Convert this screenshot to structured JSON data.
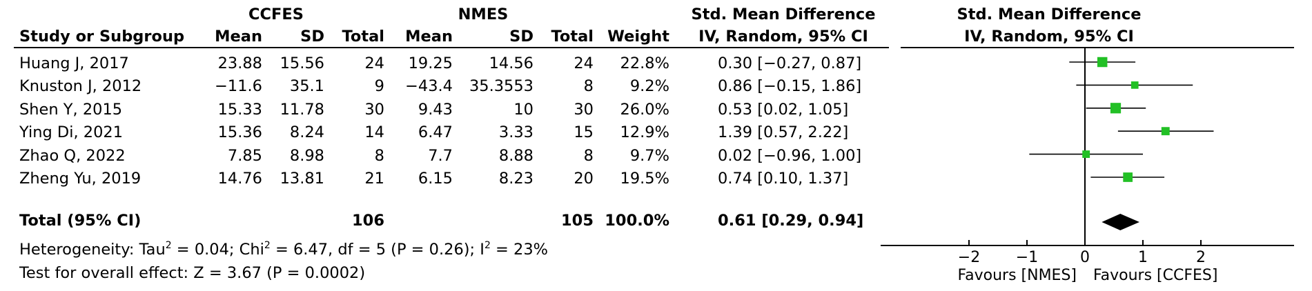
{
  "header": {
    "group1": "CCFES",
    "group2": "NMES",
    "effect_title_text": "Std. Mean Difference",
    "plot_title": "Std. Mean Difference",
    "plot_subtitle": "IV, Random, 95% CI",
    "columns": {
      "study": "Study or Subgroup",
      "mean1": "Mean",
      "sd1": "SD",
      "total1": "Total",
      "mean2": "Mean",
      "sd2": "SD",
      "total2": "Total",
      "weight": "Weight",
      "ci": "IV, Random, 95% CI"
    }
  },
  "studies": [
    {
      "study": "Huang J, 2017",
      "mean1": "23.88",
      "sd1": "15.56",
      "total1": "24",
      "mean2": "19.25",
      "sd2": "14.56",
      "total2": "24",
      "weight": "22.8%",
      "ci": "0.30 [−0.27, 0.87]"
    },
    {
      "study": "Knuston J, 2012",
      "mean1": "−11.6",
      "sd1": "35.1",
      "total1": "9",
      "mean2": "−43.4",
      "sd2": "35.3553",
      "total2": "8",
      "weight": "9.2%",
      "ci": "0.86 [−0.15, 1.86]"
    },
    {
      "study": "Shen Y, 2015",
      "mean1": "15.33",
      "sd1": "11.78",
      "total1": "30",
      "mean2": "9.43",
      "sd2": "10",
      "total2": "30",
      "weight": "26.0%",
      "ci": "0.53 [0.02, 1.05]"
    },
    {
      "study": "Ying Di, 2021",
      "mean1": "15.36",
      "sd1": "8.24",
      "total1": "14",
      "mean2": "6.47",
      "sd2": "3.33",
      "total2": "15",
      "weight": "12.9%",
      "ci": "1.39 [0.57, 2.22]"
    },
    {
      "study": "Zhao Q, 2022",
      "mean1": "7.85",
      "sd1": "8.98",
      "total1": "8",
      "mean2": "7.7",
      "sd2": "8.88",
      "total2": "8",
      "weight": "9.7%",
      "ci": "0.02 [−0.96, 1.00]"
    },
    {
      "study": "Zheng Yu, 2019",
      "mean1": "14.76",
      "sd1": "13.81",
      "total1": "21",
      "mean2": "6.15",
      "sd2": "8.23",
      "total2": "20",
      "weight": "19.5%",
      "ci": "0.74 [0.10, 1.37]"
    }
  ],
  "total": {
    "label": "Total (95% CI)",
    "total1": "106",
    "total2": "105",
    "weight": "100.0%",
    "ci": "0.61 [0.29, 0.94]"
  },
  "heterogeneity": {
    "prefix": "Heterogeneity: Tau",
    "tau_sup": "2",
    "tau_val": " = 0.04; Chi",
    "chi_sup": "2",
    "chi_val": " = 6.47, df = 5 (P = 0.26); I",
    "i_sup": "2",
    "i_val": " = 23%"
  },
  "overall_effect": "Test for overall effect: Z = 3.67 (P = 0.0002)",
  "colors": {
    "square": "#22c025",
    "diamond": "#000000",
    "line": "#000000"
  },
  "chart_data": {
    "type": "forest",
    "title": "Std. Mean Difference",
    "subtitle": "IV, Random, 95% CI",
    "xlim": [
      -2,
      2
    ],
    "ticks": [
      -2,
      -1,
      0,
      1,
      2
    ],
    "tick_labels": [
      "−2",
      "−1",
      "0",
      "1",
      "2"
    ],
    "favours_left": "Favours [NMES]",
    "favours_right": "Favours [CCFES]",
    "series": [
      {
        "study": "Huang J, 2017",
        "estimate": 0.3,
        "lower": -0.27,
        "upper": 0.87,
        "weight": 22.8
      },
      {
        "study": "Knuston J, 2012",
        "estimate": 0.86,
        "lower": -0.15,
        "upper": 1.86,
        "weight": 9.2
      },
      {
        "study": "Shen Y, 2015",
        "estimate": 0.53,
        "lower": 0.02,
        "upper": 1.05,
        "weight": 26.0
      },
      {
        "study": "Ying Di, 2021",
        "estimate": 1.39,
        "lower": 0.57,
        "upper": 2.22,
        "weight": 12.9
      },
      {
        "study": "Zhao Q, 2022",
        "estimate": 0.02,
        "lower": -0.96,
        "upper": 1.0,
        "weight": 9.7
      },
      {
        "study": "Zheng Yu, 2019",
        "estimate": 0.74,
        "lower": 0.1,
        "upper": 1.37,
        "weight": 19.5
      }
    ],
    "overall": {
      "estimate": 0.61,
      "lower": 0.29,
      "upper": 0.94
    }
  }
}
